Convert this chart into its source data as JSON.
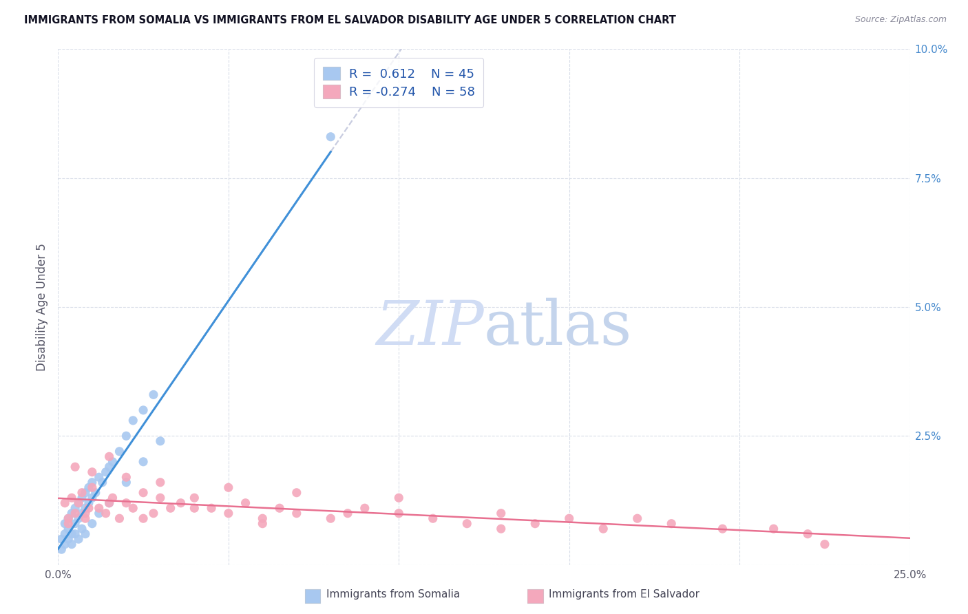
{
  "title": "IMMIGRANTS FROM SOMALIA VS IMMIGRANTS FROM EL SALVADOR DISABILITY AGE UNDER 5 CORRELATION CHART",
  "source": "Source: ZipAtlas.com",
  "ylabel": "Disability Age Under 5",
  "xlabel_somalia": "Immigrants from Somalia",
  "xlabel_elsalvador": "Immigrants from El Salvador",
  "xlim": [
    0.0,
    0.25
  ],
  "ylim": [
    0.0,
    0.1
  ],
  "xticks": [
    0.0,
    0.05,
    0.1,
    0.15,
    0.2,
    0.25
  ],
  "yticks": [
    0.0,
    0.025,
    0.05,
    0.075,
    0.1
  ],
  "yticklabels": [
    "",
    "2.5%",
    "5.0%",
    "7.5%",
    "10.0%"
  ],
  "xticklabels": [
    "0.0%",
    "",
    "",
    "",
    "",
    "25.0%"
  ],
  "somalia_color": "#A8C8F0",
  "elsalvador_color": "#F4A8BC",
  "trend_somalia_color": "#4090D8",
  "trend_elsalvador_color": "#E87090",
  "extrap_color": "#C8CCE0",
  "background_color": "#ffffff",
  "grid_color": "#d8dde8",
  "watermark_color_zip": "#D0DCF4",
  "watermark_color_atlas": "#C4D4EC",
  "title_color": "#111122",
  "source_color": "#888899",
  "ylabel_color": "#555566",
  "ytick_color": "#4488CC",
  "xtick_color": "#555566",
  "somalia_x": [
    0.001,
    0.002,
    0.002,
    0.003,
    0.003,
    0.004,
    0.004,
    0.005,
    0.005,
    0.006,
    0.006,
    0.007,
    0.007,
    0.008,
    0.008,
    0.009,
    0.009,
    0.01,
    0.01,
    0.011,
    0.012,
    0.013,
    0.014,
    0.015,
    0.016,
    0.018,
    0.02,
    0.022,
    0.025,
    0.028,
    0.001,
    0.002,
    0.003,
    0.004,
    0.005,
    0.006,
    0.007,
    0.008,
    0.01,
    0.012,
    0.015,
    0.02,
    0.025,
    0.03,
    0.08
  ],
  "somalia_y": [
    0.005,
    0.006,
    0.008,
    0.007,
    0.009,
    0.006,
    0.01,
    0.008,
    0.011,
    0.009,
    0.012,
    0.01,
    0.013,
    0.011,
    0.014,
    0.012,
    0.015,
    0.013,
    0.016,
    0.014,
    0.017,
    0.016,
    0.018,
    0.019,
    0.02,
    0.022,
    0.025,
    0.028,
    0.03,
    0.033,
    0.003,
    0.004,
    0.005,
    0.004,
    0.006,
    0.005,
    0.007,
    0.006,
    0.008,
    0.01,
    0.012,
    0.016,
    0.02,
    0.024,
    0.083
  ],
  "elsalvador_x": [
    0.002,
    0.003,
    0.004,
    0.005,
    0.006,
    0.007,
    0.008,
    0.009,
    0.01,
    0.012,
    0.014,
    0.016,
    0.018,
    0.02,
    0.022,
    0.025,
    0.028,
    0.03,
    0.033,
    0.036,
    0.04,
    0.045,
    0.05,
    0.055,
    0.06,
    0.065,
    0.07,
    0.08,
    0.09,
    0.1,
    0.11,
    0.12,
    0.13,
    0.14,
    0.15,
    0.16,
    0.17,
    0.18,
    0.195,
    0.21,
    0.22,
    0.225,
    0.005,
    0.01,
    0.015,
    0.02,
    0.03,
    0.05,
    0.07,
    0.1,
    0.003,
    0.008,
    0.015,
    0.025,
    0.04,
    0.06,
    0.085,
    0.13
  ],
  "elsalvador_y": [
    0.012,
    0.009,
    0.013,
    0.01,
    0.012,
    0.014,
    0.009,
    0.011,
    0.015,
    0.011,
    0.01,
    0.013,
    0.009,
    0.012,
    0.011,
    0.014,
    0.01,
    0.013,
    0.011,
    0.012,
    0.013,
    0.011,
    0.01,
    0.012,
    0.009,
    0.011,
    0.01,
    0.009,
    0.011,
    0.01,
    0.009,
    0.008,
    0.01,
    0.008,
    0.009,
    0.007,
    0.009,
    0.008,
    0.007,
    0.007,
    0.006,
    0.004,
    0.019,
    0.018,
    0.021,
    0.017,
    0.016,
    0.015,
    0.014,
    0.013,
    0.008,
    0.01,
    0.012,
    0.009,
    0.011,
    0.008,
    0.01,
    0.007
  ]
}
